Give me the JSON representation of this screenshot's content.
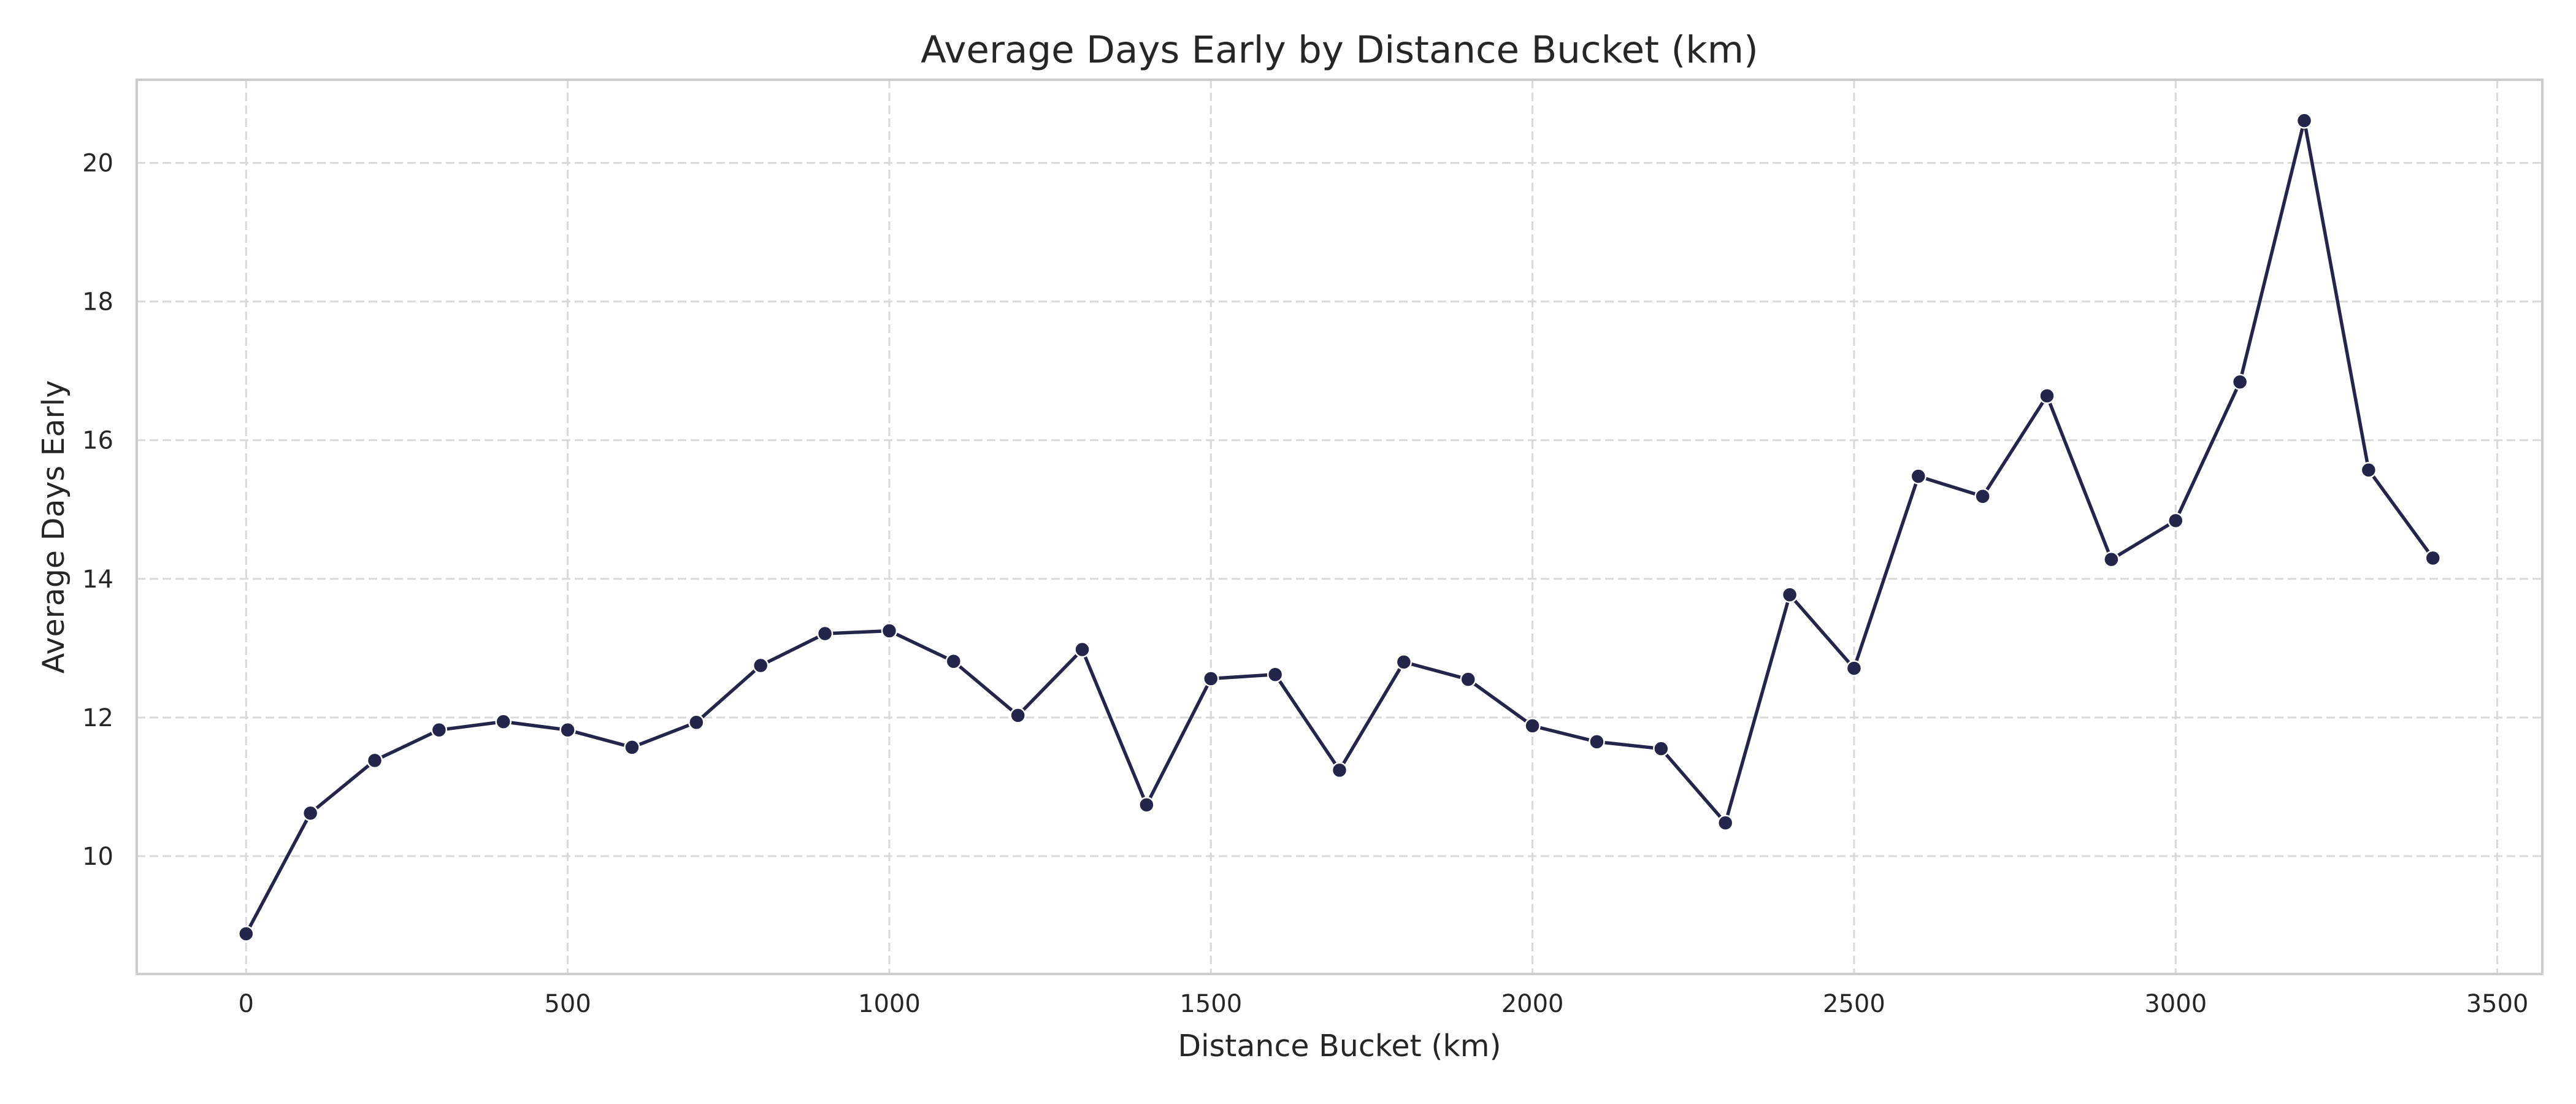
{
  "chart_data": {
    "type": "line",
    "title": "Average Days Early by Distance Bucket (km)",
    "xlabel": "Distance Bucket (km)",
    "ylabel": "Average Days Early",
    "xlim": [
      -170,
      3570
    ],
    "ylim": [
      8.3,
      21.2
    ],
    "xticks": [
      0,
      500,
      1000,
      1500,
      2000,
      2500,
      3000,
      3500
    ],
    "yticks": [
      10,
      12,
      14,
      16,
      18,
      20
    ],
    "grid": true,
    "legend": "none",
    "line_color": "#23264a",
    "series": [
      {
        "x": [
          0,
          100,
          200,
          300,
          400,
          500,
          600,
          700,
          800,
          900,
          1000,
          1100,
          1200,
          1300,
          1400,
          1500,
          1600,
          1700,
          1800,
          1900,
          2000,
          2100,
          2200,
          2300,
          2400,
          2500,
          2600,
          2700,
          2800,
          2900,
          3000,
          3100,
          3200,
          3300,
          3400
        ],
        "y": [
          8.88,
          10.62,
          11.38,
          11.82,
          11.94,
          11.82,
          11.57,
          11.93,
          12.75,
          13.21,
          13.25,
          12.81,
          12.03,
          12.98,
          10.74,
          12.56,
          12.62,
          11.24,
          12.8,
          12.55,
          11.88,
          11.65,
          11.55,
          10.48,
          13.77,
          12.71,
          15.48,
          15.19,
          16.64,
          14.28,
          14.84,
          16.84,
          20.61,
          15.57,
          14.3
        ]
      }
    ]
  }
}
